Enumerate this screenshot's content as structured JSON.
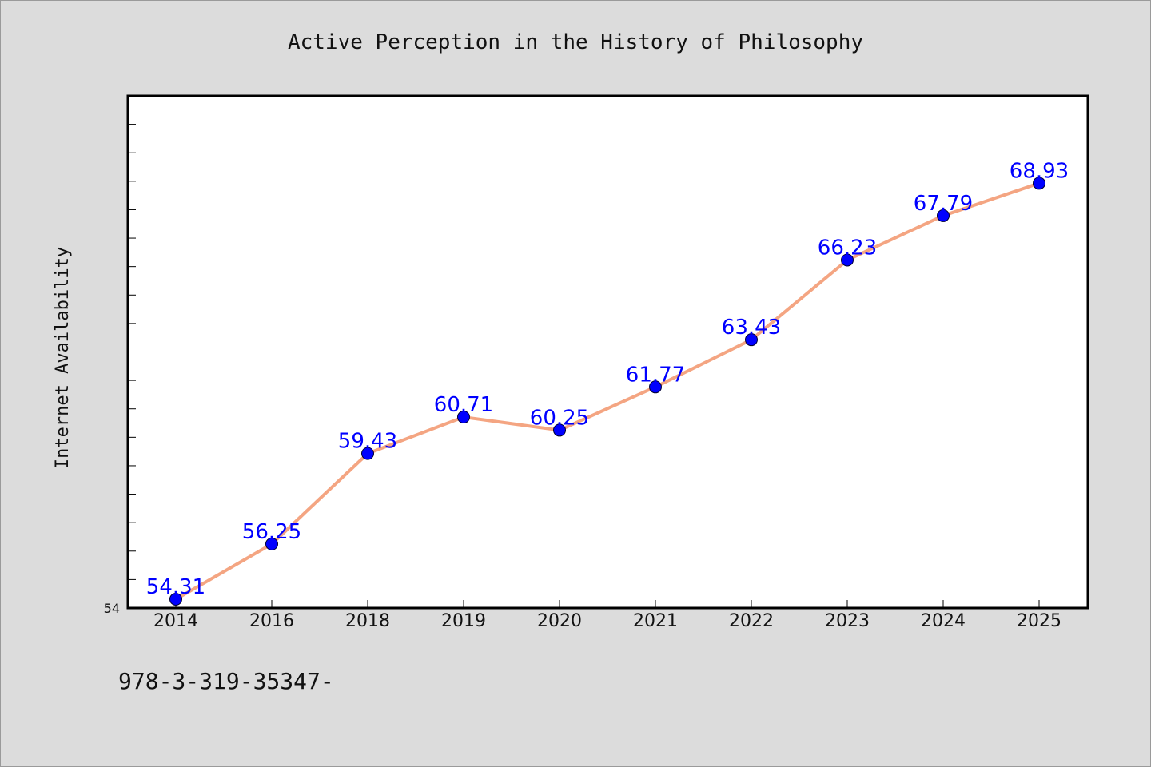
{
  "colors": {
    "background": "#dcdcdc",
    "plot_background": "#ffffff",
    "line": "#f4a582",
    "marker": "#0000ff",
    "data_label": "#0000ff"
  },
  "footer_text": "978-3-319-35347-",
  "chart_data": {
    "type": "line",
    "title": "Active Perception in the History of Philosophy",
    "xlabel": "",
    "ylabel": "Internet Availability",
    "categories": [
      "2014",
      "2016",
      "2018",
      "2019",
      "2020",
      "2021",
      "2022",
      "2023",
      "2024",
      "2025"
    ],
    "series": [
      {
        "values": [
          54.31,
          56.25,
          59.43,
          60.71,
          60.25,
          61.77,
          63.43,
          66.23,
          67.79,
          68.93
        ],
        "data_labels": [
          "54.31",
          "56.25",
          "59.43",
          "60.71",
          "60.25",
          "61.77",
          "63.43",
          "66.23",
          "67.79",
          "68.93"
        ]
      }
    ],
    "ylim": [
      54,
      72
    ],
    "y_tick_labels": [
      "54"
    ],
    "grid": false,
    "legend": "none"
  }
}
